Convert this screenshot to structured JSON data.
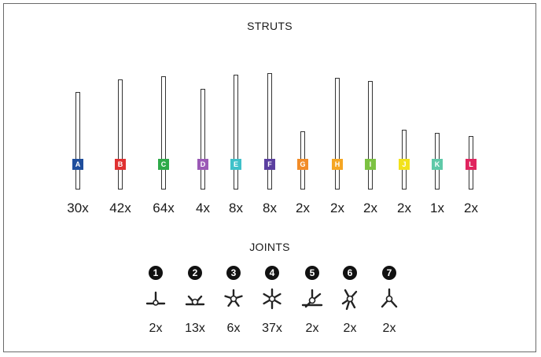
{
  "struts": {
    "title": "STRUTS",
    "items": [
      {
        "label": "A",
        "color": "#1f4e9c",
        "count": "30x",
        "height_rel": 0.62
      },
      {
        "label": "B",
        "color": "#e03131",
        "count": "42x",
        "height_rel": 0.7
      },
      {
        "label": "C",
        "color": "#2faa4a",
        "count": "64x",
        "height_rel": 0.72
      },
      {
        "label": "D",
        "color": "#9b59b6",
        "count": "4x",
        "height_rel": 0.64
      },
      {
        "label": "E",
        "color": "#3fc1c9",
        "count": "8x",
        "height_rel": 0.73
      },
      {
        "label": "F",
        "color": "#5b3fa0",
        "count": "8x",
        "height_rel": 0.74
      },
      {
        "label": "G",
        "color": "#f28c28",
        "count": "2x",
        "height_rel": 0.37
      },
      {
        "label": "H",
        "color": "#f5a623",
        "count": "2x",
        "height_rel": 0.71
      },
      {
        "label": "I",
        "color": "#7cc242",
        "count": "2x",
        "height_rel": 0.69
      },
      {
        "label": "J",
        "color": "#f2e21b",
        "count": "2x",
        "height_rel": 0.38
      },
      {
        "label": "K",
        "color": "#5fc9a8",
        "count": "1x",
        "height_rel": 0.36
      },
      {
        "label": "L",
        "color": "#e0245e",
        "count": "2x",
        "height_rel": 0.34
      }
    ]
  },
  "joints": {
    "title": "JOINTS",
    "items": [
      {
        "number": "1",
        "icon": "joint-icon-1",
        "count": "2x"
      },
      {
        "number": "2",
        "icon": "joint-icon-2",
        "count": "13x"
      },
      {
        "number": "3",
        "icon": "joint-icon-3",
        "count": "6x"
      },
      {
        "number": "4",
        "icon": "joint-icon-4",
        "count": "37x"
      },
      {
        "number": "5",
        "icon": "joint-icon-5",
        "count": "2x"
      },
      {
        "number": "6",
        "icon": "joint-icon-6",
        "count": "2x"
      },
      {
        "number": "7",
        "icon": "joint-icon-7",
        "count": "2x"
      }
    ]
  }
}
